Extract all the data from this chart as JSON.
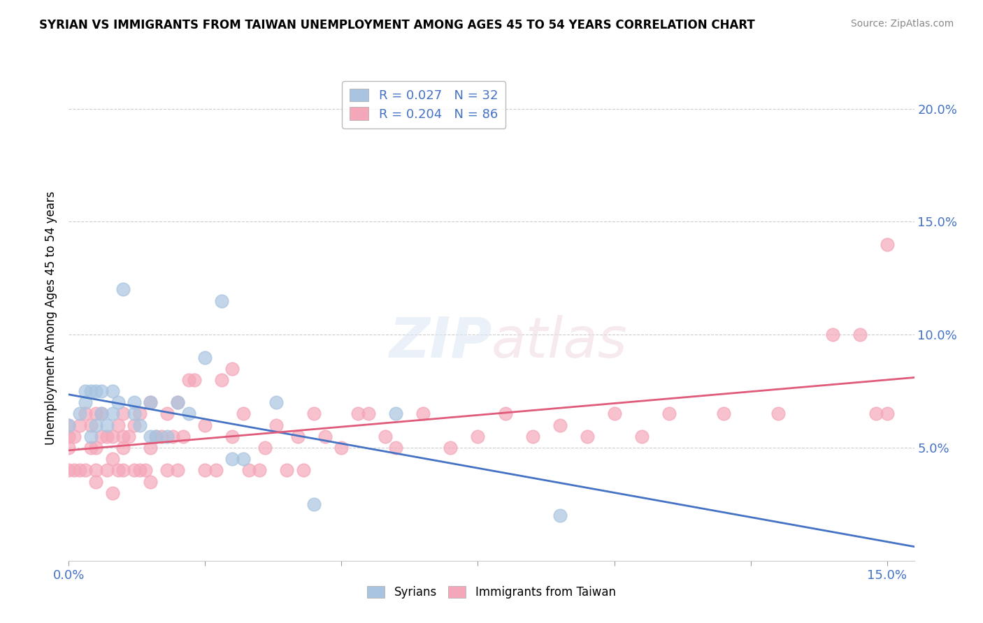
{
  "title": "SYRIAN VS IMMIGRANTS FROM TAIWAN UNEMPLOYMENT AMONG AGES 45 TO 54 YEARS CORRELATION CHART",
  "source": "Source: ZipAtlas.com",
  "ylabel": "Unemployment Among Ages 45 to 54 years",
  "xlim": [
    0.0,
    0.155
  ],
  "ylim": [
    0.0,
    0.215
  ],
  "xticks": [
    0.0,
    0.025,
    0.05,
    0.075,
    0.1,
    0.125,
    0.15
  ],
  "xtick_labels_show": [
    "0.0%",
    "",
    "",
    "",
    "",
    "",
    "15.0%"
  ],
  "yticks": [
    0.05,
    0.1,
    0.15,
    0.2
  ],
  "ytick_labels": [
    "5.0%",
    "10.0%",
    "15.0%",
    "20.0%"
  ],
  "series1_label": "Syrians",
  "series1_R": "0.027",
  "series1_N": "32",
  "series1_color": "#a8c4e0",
  "series1_line_color": "#4472c4",
  "series2_label": "Immigrants from Taiwan",
  "series2_R": "0.204",
  "series2_N": "86",
  "series2_color": "#f4a7b9",
  "series2_line_color": "#e05a7a",
  "legend_text_color": "#4472c4",
  "syrians_x": [
    0.0,
    0.002,
    0.003,
    0.003,
    0.004,
    0.004,
    0.005,
    0.005,
    0.006,
    0.006,
    0.007,
    0.008,
    0.008,
    0.009,
    0.01,
    0.012,
    0.012,
    0.013,
    0.015,
    0.015,
    0.016,
    0.018,
    0.02,
    0.022,
    0.025,
    0.028,
    0.03,
    0.032,
    0.038,
    0.045,
    0.06,
    0.09
  ],
  "syrians_y": [
    0.06,
    0.065,
    0.075,
    0.07,
    0.055,
    0.075,
    0.06,
    0.075,
    0.065,
    0.075,
    0.06,
    0.065,
    0.075,
    0.07,
    0.12,
    0.065,
    0.07,
    0.06,
    0.055,
    0.07,
    0.055,
    0.055,
    0.07,
    0.065,
    0.09,
    0.115,
    0.045,
    0.045,
    0.07,
    0.025,
    0.065,
    0.02
  ],
  "taiwan_x": [
    0.0,
    0.0,
    0.0,
    0.0,
    0.001,
    0.001,
    0.002,
    0.002,
    0.003,
    0.003,
    0.004,
    0.004,
    0.005,
    0.005,
    0.005,
    0.005,
    0.006,
    0.006,
    0.007,
    0.007,
    0.008,
    0.008,
    0.008,
    0.009,
    0.009,
    0.01,
    0.01,
    0.01,
    0.01,
    0.011,
    0.012,
    0.012,
    0.013,
    0.013,
    0.014,
    0.015,
    0.015,
    0.015,
    0.016,
    0.017,
    0.018,
    0.018,
    0.019,
    0.02,
    0.02,
    0.021,
    0.022,
    0.023,
    0.025,
    0.025,
    0.027,
    0.028,
    0.03,
    0.03,
    0.032,
    0.033,
    0.035,
    0.036,
    0.038,
    0.04,
    0.042,
    0.043,
    0.045,
    0.047,
    0.05,
    0.053,
    0.055,
    0.058,
    0.06,
    0.065,
    0.07,
    0.075,
    0.08,
    0.085,
    0.09,
    0.095,
    0.1,
    0.105,
    0.11,
    0.12,
    0.13,
    0.14,
    0.145,
    0.148,
    0.15,
    0.15
  ],
  "taiwan_y": [
    0.04,
    0.05,
    0.055,
    0.06,
    0.04,
    0.055,
    0.04,
    0.06,
    0.04,
    0.065,
    0.05,
    0.06,
    0.035,
    0.04,
    0.05,
    0.065,
    0.055,
    0.065,
    0.04,
    0.055,
    0.03,
    0.045,
    0.055,
    0.04,
    0.06,
    0.04,
    0.05,
    0.055,
    0.065,
    0.055,
    0.04,
    0.06,
    0.04,
    0.065,
    0.04,
    0.035,
    0.05,
    0.07,
    0.055,
    0.055,
    0.04,
    0.065,
    0.055,
    0.04,
    0.07,
    0.055,
    0.08,
    0.08,
    0.04,
    0.06,
    0.04,
    0.08,
    0.055,
    0.085,
    0.065,
    0.04,
    0.04,
    0.05,
    0.06,
    0.04,
    0.055,
    0.04,
    0.065,
    0.055,
    0.05,
    0.065,
    0.065,
    0.055,
    0.05,
    0.065,
    0.05,
    0.055,
    0.065,
    0.055,
    0.06,
    0.055,
    0.065,
    0.055,
    0.065,
    0.065,
    0.065,
    0.1,
    0.1,
    0.065,
    0.065,
    0.14
  ]
}
